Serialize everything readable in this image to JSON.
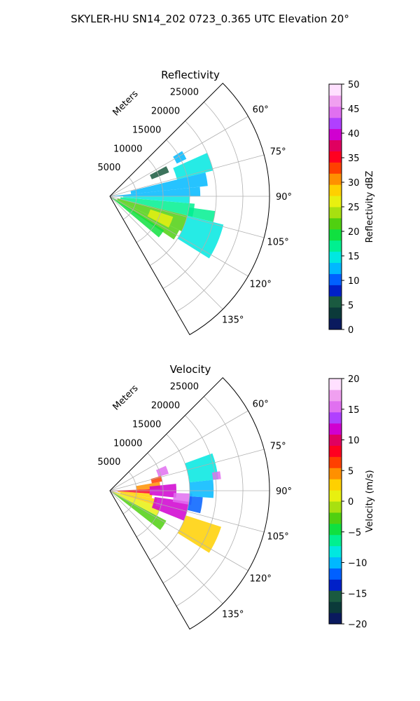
{
  "figure": {
    "title": "SKYLER-HU  SN14_202  0723_0.365 UTC Elevation 20°"
  },
  "chart_data": [
    {
      "type": "polar-ppi",
      "title": "Reflectivity",
      "range_label": "Meters",
      "range_ticks": [
        5000,
        10000,
        15000,
        20000,
        25000
      ],
      "range_tick_labels": [
        "5000",
        "10000",
        "15000",
        "20000",
        "25000"
      ],
      "rmax": 30000,
      "theta_range_deg": [
        45,
        150
      ],
      "theta_ticks_deg": [
        60,
        75,
        90,
        105,
        120,
        135
      ],
      "theta_tick_labels": [
        "60°",
        "75°",
        "90°",
        "105°",
        "120°",
        "135°"
      ],
      "grid": true,
      "colorbar": {
        "label": "Reflectivity dBZ",
        "vmin": 0,
        "vmax": 50,
        "ticks": [
          0,
          5,
          10,
          15,
          20,
          25,
          30,
          35,
          40,
          45,
          50
        ],
        "tick_labels": [
          "0",
          "5",
          "10",
          "15",
          "20",
          "25",
          "30",
          "35",
          "40",
          "45",
          "50"
        ],
        "stops": [
          "#0a1a5e",
          "#0b3a3a",
          "#1a5a40",
          "#0020c8",
          "#0060ff",
          "#00b8ff",
          "#00e8e0",
          "#00f090",
          "#10e040",
          "#50d010",
          "#a8e010",
          "#e8f010",
          "#ffd000",
          "#ff9000",
          "#ff4000",
          "#ff0020",
          "#e00060",
          "#d000d0",
          "#b040ff",
          "#e070f0",
          "#f0a0f0",
          "#ffe0ff"
        ]
      },
      "echo_regions": [
        {
          "az": [
            116,
            124
          ],
          "r": [
            0,
            14500
          ],
          "value": 22
        },
        {
          "az": [
            122,
            130
          ],
          "r": [
            0,
            12000
          ],
          "value": 20
        },
        {
          "az": [
            104,
            116
          ],
          "r": [
            1500,
            15000
          ],
          "value": 21
        },
        {
          "az": [
            95,
            104
          ],
          "r": [
            2000,
            16000
          ],
          "value": 17
        },
        {
          "az": [
            90,
            95
          ],
          "r": [
            2500,
            15000
          ],
          "value": 14
        },
        {
          "az": [
            84,
            90
          ],
          "r": [
            0,
            17000
          ],
          "value": 12
        },
        {
          "az": [
            76,
            84
          ],
          "r": [
            4000,
            18500
          ],
          "value": 13
        },
        {
          "az": [
            66,
            76
          ],
          "r": [
            13000,
            20000
          ],
          "value": 15
        },
        {
          "az": [
            62,
            68
          ],
          "r": [
            8500,
            12000
          ],
          "value": 5
        },
        {
          "az": [
            58,
            64
          ],
          "r": [
            14000,
            16000
          ],
          "value": 12
        },
        {
          "az": [
            104,
            122
          ],
          "r": [
            15000,
            22000
          ],
          "value": 15
        },
        {
          "az": [
            98,
            104
          ],
          "r": [
            15000,
            20000
          ],
          "value": 18
        },
        {
          "az": [
            108,
            118
          ],
          "r": [
            8000,
            12500
          ],
          "value": 25
        }
      ]
    },
    {
      "type": "polar-ppi",
      "title": "Velocity",
      "range_label": "Meters",
      "range_ticks": [
        5000,
        10000,
        15000,
        20000,
        25000
      ],
      "range_tick_labels": [
        "5000",
        "10000",
        "15000",
        "20000",
        "25000"
      ],
      "rmax": 30000,
      "theta_range_deg": [
        45,
        150
      ],
      "theta_ticks_deg": [
        60,
        75,
        90,
        105,
        120,
        135
      ],
      "theta_tick_labels": [
        "60°",
        "75°",
        "90°",
        "105°",
        "120°",
        "135°"
      ],
      "grid": true,
      "colorbar": {
        "label": "Velocity (m/s)",
        "vmin": -20,
        "vmax": 20,
        "ticks": [
          -20,
          -15,
          -10,
          -5,
          0,
          5,
          10,
          15,
          20
        ],
        "tick_labels": [
          "−20",
          "−15",
          "−10",
          "−5",
          "0",
          "5",
          "10",
          "15",
          "20"
        ],
        "stops": [
          "#0a1a5e",
          "#0b3a3a",
          "#1a5a40",
          "#0020c8",
          "#0060ff",
          "#00b8ff",
          "#00e8e0",
          "#00f090",
          "#10e040",
          "#50d010",
          "#a8e010",
          "#e8f010",
          "#ffd000",
          "#ff9000",
          "#ff4000",
          "#ff0020",
          "#e00060",
          "#d000d0",
          "#b040ff",
          "#e070f0",
          "#f0a0f0",
          "#ffe0ff"
        ]
      },
      "echo_regions": [
        {
          "az": [
            118,
            128
          ],
          "r": [
            0,
            12000
          ],
          "value": -3
        },
        {
          "az": [
            108,
            118
          ],
          "r": [
            0,
            10000
          ],
          "value": 1
        },
        {
          "az": [
            100,
            108
          ],
          "r": [
            2000,
            9000
          ],
          "value": 2
        },
        {
          "az": [
            94,
            100
          ],
          "r": [
            1500,
            8000
          ],
          "value": 3
        },
        {
          "az": [
            88,
            94
          ],
          "r": [
            0,
            7500
          ],
          "value": 8
        },
        {
          "az": [
            80,
            88
          ],
          "r": [
            5000,
            9500
          ],
          "value": 5
        },
        {
          "az": [
            84,
            96
          ],
          "r": [
            7500,
            12500
          ],
          "value": 11
        },
        {
          "az": [
            98,
            112
          ],
          "r": [
            8500,
            15000
          ],
          "value": 11
        },
        {
          "az": [
            92,
            100
          ],
          "r": [
            12000,
            15500
          ],
          "value": 15
        },
        {
          "az": [
            94,
            104
          ],
          "r": [
            15000,
            17500
          ],
          "value": -12
        },
        {
          "az": [
            84,
            94
          ],
          "r": [
            15000,
            19500
          ],
          "value": -10
        },
        {
          "az": [
            70,
            84
          ],
          "r": [
            15000,
            20500
          ],
          "value": -8
        },
        {
          "az": [
            66,
            74
          ],
          "r": [
            9500,
            11500
          ],
          "value": 16
        },
        {
          "az": [
            74,
            80
          ],
          "r": [
            8000,
            10000
          ],
          "value": 7
        },
        {
          "az": [
            108,
            122
          ],
          "r": [
            15000,
            22000
          ],
          "value": 3
        },
        {
          "az": [
            80,
            84
          ],
          "r": [
            19500,
            21000
          ],
          "value": 15
        }
      ]
    }
  ]
}
